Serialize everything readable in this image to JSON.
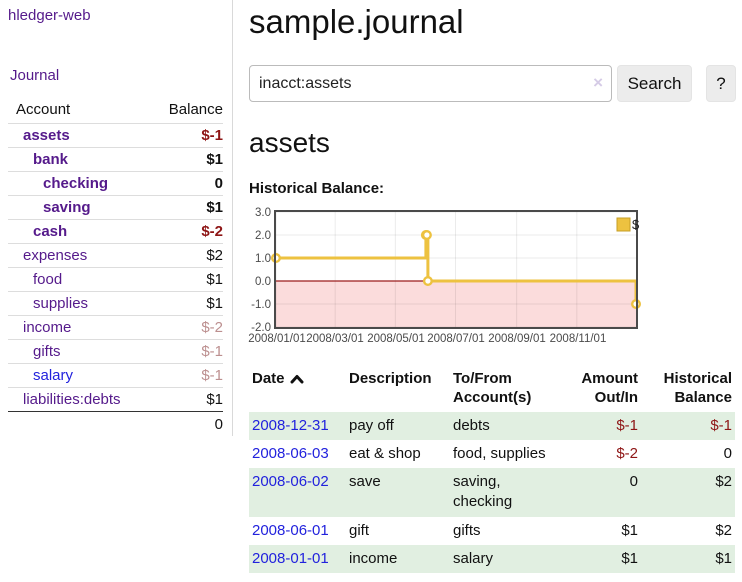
{
  "app": {
    "brand": "hledger-web",
    "nav_journal": "Journal"
  },
  "sidebar": {
    "headers": {
      "account": "Account",
      "balance": "Balance"
    },
    "accounts": [
      {
        "name": "assets",
        "balance": "$-1"
      },
      {
        "name": "bank",
        "balance": "$1"
      },
      {
        "name": "checking",
        "balance": "0"
      },
      {
        "name": "saving",
        "balance": "$1"
      },
      {
        "name": "cash",
        "balance": "$-2"
      },
      {
        "name": "expenses",
        "balance": "$2"
      },
      {
        "name": "food",
        "balance": "$1"
      },
      {
        "name": "supplies",
        "balance": "$1"
      },
      {
        "name": "income",
        "balance": "$-2"
      },
      {
        "name": "gifts",
        "balance": "$-1"
      },
      {
        "name": "salary",
        "balance": "$-1"
      },
      {
        "name": "liabilities:debts",
        "balance": "$1"
      }
    ],
    "total": "0"
  },
  "header": {
    "title": "sample.journal"
  },
  "search": {
    "value": "inacct:assets",
    "clear_icon": "×",
    "button": "Search",
    "help_button": "?"
  },
  "account_page": {
    "heading": "assets",
    "chart_label": "Historical Balance:"
  },
  "chart_data": {
    "type": "line",
    "style": "step",
    "title": "Historical Balance",
    "series": [
      {
        "name": "$",
        "color": "#edc240",
        "points": [
          [
            "2008-01-01",
            1
          ],
          [
            "2008-06-01",
            2
          ],
          [
            "2008-06-02",
            2
          ],
          [
            "2008-06-03",
            0
          ],
          [
            "2008-12-31",
            -1
          ]
        ]
      }
    ],
    "xrange": [
      "2008-01-01",
      "2008-12-31"
    ],
    "ylim": [
      -2,
      3
    ],
    "yticks": [
      "3.0",
      "2.0",
      "1.0",
      "0.0",
      "-1.0",
      "-2.0"
    ],
    "xticks": [
      "2008/01/01",
      "2008/03/01",
      "2008/05/01",
      "2008/07/01",
      "2008/09/01",
      "2008/11/01"
    ],
    "grid": true,
    "negative_region_fill": "#fbdcdc",
    "zero_line_color": "#9b1c1c",
    "legend": {
      "position": "ne",
      "label": "$"
    }
  },
  "register": {
    "headers": {
      "date": "Date",
      "description": "Description",
      "account": "To/From\nAccount(s)",
      "amount": "Amount\nOut/In",
      "balance": "Historical\nBalance"
    },
    "rows": [
      {
        "date": "2008-12-31",
        "description": "pay off",
        "account": "debts",
        "amount": "$-1",
        "balance": "$-1"
      },
      {
        "date": "2008-06-03",
        "description": "eat & shop",
        "account": "food, supplies",
        "amount": "$-2",
        "balance": "0"
      },
      {
        "date": "2008-06-02",
        "description": "save",
        "account": "saving,\nchecking",
        "amount": "0",
        "balance": "$2"
      },
      {
        "date": "2008-06-01",
        "description": "gift",
        "account": "gifts",
        "amount": "$1",
        "balance": "$2"
      },
      {
        "date": "2008-01-01",
        "description": "income",
        "account": "salary",
        "amount": "$1",
        "balance": "$1"
      }
    ]
  }
}
